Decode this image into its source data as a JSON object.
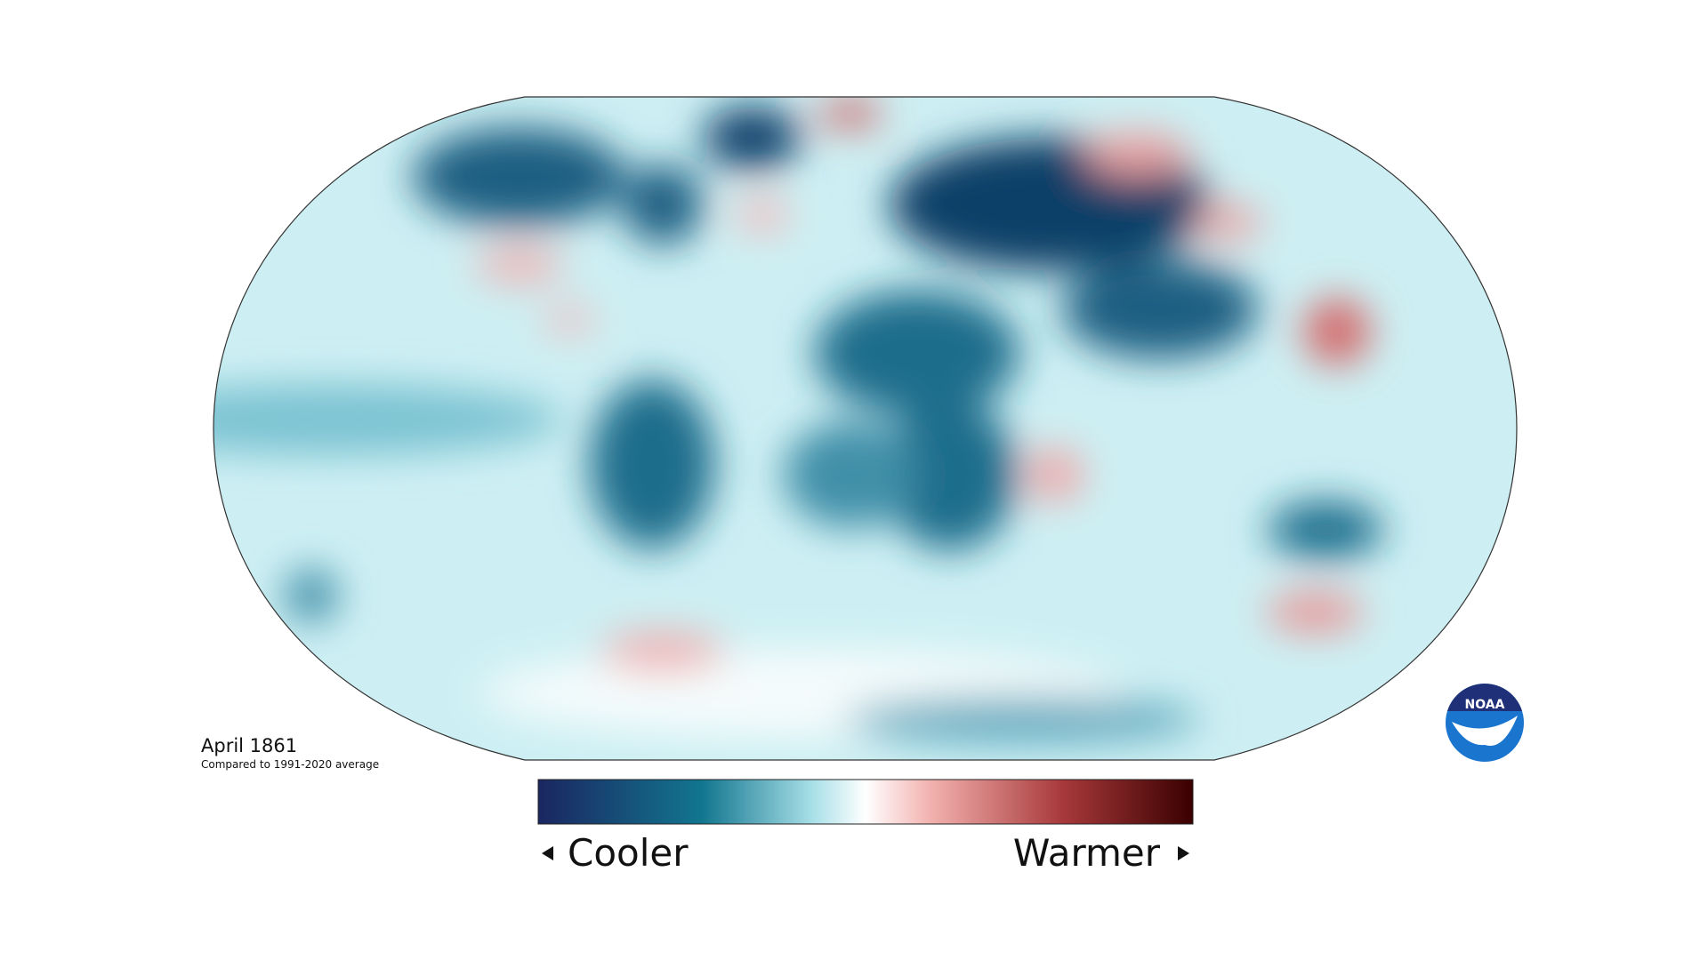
{
  "title": "April 1861",
  "subtitle": "Compared to 1991-2020 average",
  "legend": {
    "low": "Cooler",
    "high": "Warmer"
  },
  "logo": "NOAA"
}
